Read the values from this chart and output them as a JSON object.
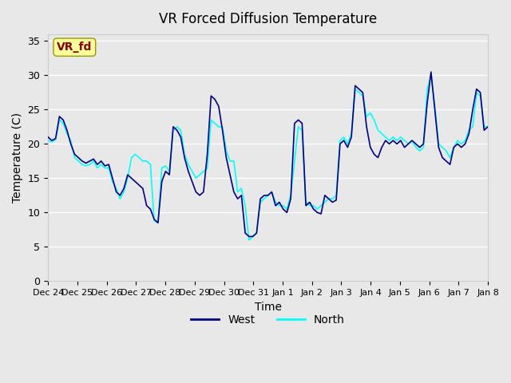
{
  "title": "VR Forced Diffusion Temperature",
  "ylabel": "Temperature (C)",
  "xlabel": "Time",
  "ylim": [
    0,
    36
  ],
  "yticks": [
    0,
    5,
    10,
    15,
    20,
    25,
    30,
    35
  ],
  "west_color": "#00008B",
  "north_color": "#00FFFF",
  "background_color": "#E8E8E8",
  "plot_bg_color": "#E8E8E8",
  "legend_west": "West",
  "legend_north": "North",
  "label_text": "VR_fd",
  "label_text_color": "#8B0000",
  "label_box_color": "#FFFF99",
  "x_tick_labels": [
    "Dec 24",
    "Dec 25",
    "Dec 26",
    "Dec 27",
    "Dec 28",
    "Dec 29",
    "Dec 30",
    "Dec 31",
    "Jan 1",
    "Jan 2",
    "Jan 3",
    "Jan 4",
    "Jan 5",
    "Jan 6",
    "Jan 7",
    "Jan 8"
  ],
  "west_data": [
    21.0,
    20.5,
    20.8,
    24.0,
    23.5,
    22.0,
    20.0,
    18.5,
    18.0,
    17.5,
    17.2,
    17.5,
    17.8,
    17.0,
    17.5,
    16.8,
    17.0,
    15.0,
    13.0,
    12.5,
    13.5,
    15.5,
    15.0,
    14.5,
    14.0,
    13.5,
    11.0,
    10.5,
    9.0,
    8.5,
    14.5,
    16.0,
    15.5,
    22.5,
    22.0,
    21.0,
    18.0,
    16.0,
    14.5,
    13.0,
    12.5,
    13.0,
    18.5,
    27.0,
    26.5,
    25.5,
    22.0,
    18.0,
    15.5,
    13.0,
    12.0,
    12.5,
    7.0,
    6.5,
    6.5,
    7.0,
    12.0,
    12.5,
    12.5,
    13.0,
    11.0,
    11.5,
    10.5,
    10.0,
    12.0,
    23.0,
    23.5,
    23.0,
    11.0,
    11.5,
    10.5,
    10.0,
    9.8,
    12.5,
    12.0,
    11.5,
    11.8,
    20.0,
    20.5,
    19.5,
    21.0,
    28.5,
    28.0,
    27.5,
    22.5,
    19.5,
    18.5,
    18.0,
    19.5,
    20.5,
    20.0,
    20.5,
    20.0,
    20.5,
    19.5,
    20.0,
    20.5,
    20.0,
    19.5,
    20.0,
    26.0,
    30.5,
    25.0,
    19.5,
    18.0,
    17.5,
    17.0,
    19.5,
    20.0,
    19.5,
    20.0,
    21.5,
    25.0,
    28.0,
    27.5,
    22.0,
    22.5
  ],
  "north_data": [
    20.5,
    20.3,
    20.6,
    23.5,
    23.0,
    21.5,
    20.5,
    18.0,
    17.5,
    17.0,
    16.8,
    17.0,
    17.5,
    16.5,
    17.0,
    16.5,
    16.5,
    14.5,
    13.5,
    12.0,
    13.0,
    15.0,
    18.0,
    18.5,
    18.0,
    17.5,
    17.5,
    17.0,
    8.8,
    8.5,
    16.5,
    16.8,
    16.0,
    22.0,
    22.5,
    22.0,
    18.5,
    17.0,
    16.0,
    15.0,
    15.5,
    16.0,
    16.5,
    23.5,
    23.0,
    22.5,
    22.5,
    19.0,
    17.5,
    17.5,
    13.0,
    13.5,
    11.0,
    6.0,
    6.5,
    7.0,
    11.5,
    12.0,
    12.5,
    13.0,
    11.5,
    11.0,
    11.0,
    10.5,
    12.5,
    17.5,
    22.5,
    22.0,
    11.5,
    11.0,
    11.0,
    10.5,
    11.0,
    11.5,
    12.0,
    12.0,
    12.5,
    20.5,
    21.0,
    20.0,
    21.5,
    28.0,
    27.5,
    27.0,
    24.0,
    24.5,
    23.5,
    22.0,
    21.5,
    21.0,
    20.5,
    21.0,
    20.5,
    21.0,
    20.5,
    20.0,
    20.5,
    19.5,
    19.0,
    19.5,
    28.0,
    30.0,
    25.5,
    20.0,
    19.5,
    19.0,
    18.0,
    19.5,
    20.5,
    20.0,
    20.5,
    22.0,
    22.5,
    27.5,
    27.0,
    22.5,
    22.5
  ]
}
